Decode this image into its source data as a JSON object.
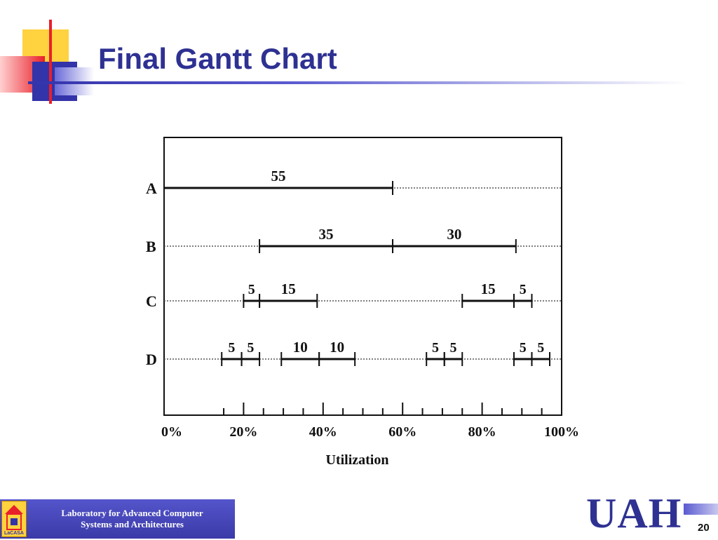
{
  "slide": {
    "title": "Final Gantt Chart",
    "page_number": "20"
  },
  "footer": {
    "lab_line1": "Laboratory for Advanced Computer",
    "lab_line2": "Systems and Architectures",
    "logo_text": "LaCASA",
    "university": "UAH"
  },
  "colors": {
    "title": "#2E3192",
    "deco_yellow": "#FFD23F",
    "deco_red": "#E8202A",
    "deco_blue": "#3333AA"
  },
  "chart_data": {
    "type": "gantt",
    "xlabel": "Utilization",
    "xlim": [
      0,
      100
    ],
    "x_tick_labels": [
      {
        "value": 0,
        "label": "0%"
      },
      {
        "value": 20,
        "label": "20%"
      },
      {
        "value": 40,
        "label": "40%"
      },
      {
        "value": 60,
        "label": "60%"
      },
      {
        "value": 80,
        "label": "80%"
      },
      {
        "value": 100,
        "label": "100%"
      }
    ],
    "minor_ticks": [
      15,
      20,
      25,
      30,
      35,
      40,
      45,
      50,
      55,
      60,
      65,
      70,
      75,
      80,
      85,
      90,
      95
    ],
    "rows": [
      {
        "label": "A",
        "segments": [
          {
            "start": 0,
            "end": 57.5,
            "label": "55"
          }
        ]
      },
      {
        "label": "B",
        "segments": [
          {
            "start": 24,
            "end": 57.5,
            "label": "35"
          },
          {
            "start": 57.5,
            "end": 88.5,
            "label": "30"
          }
        ]
      },
      {
        "label": "C",
        "segments": [
          {
            "start": 20,
            "end": 24,
            "label": "5"
          },
          {
            "start": 24,
            "end": 38.5,
            "label": "15"
          },
          {
            "start": 75,
            "end": 88,
            "label": "15"
          },
          {
            "start": 88,
            "end": 92.5,
            "label": "5"
          }
        ]
      },
      {
        "label": "D",
        "segments": [
          {
            "start": 14.5,
            "end": 19.5,
            "label": "5"
          },
          {
            "start": 19.5,
            "end": 24,
            "label": "5"
          },
          {
            "start": 29.5,
            "end": 39,
            "label": "10"
          },
          {
            "start": 39,
            "end": 48,
            "label": "10"
          },
          {
            "start": 66,
            "end": 70.5,
            "label": "5"
          },
          {
            "start": 70.5,
            "end": 75,
            "label": "5"
          },
          {
            "start": 88,
            "end": 92.5,
            "label": "5"
          },
          {
            "start": 92.5,
            "end": 97,
            "label": "5"
          }
        ]
      }
    ],
    "grid": false,
    "legend": "none"
  }
}
